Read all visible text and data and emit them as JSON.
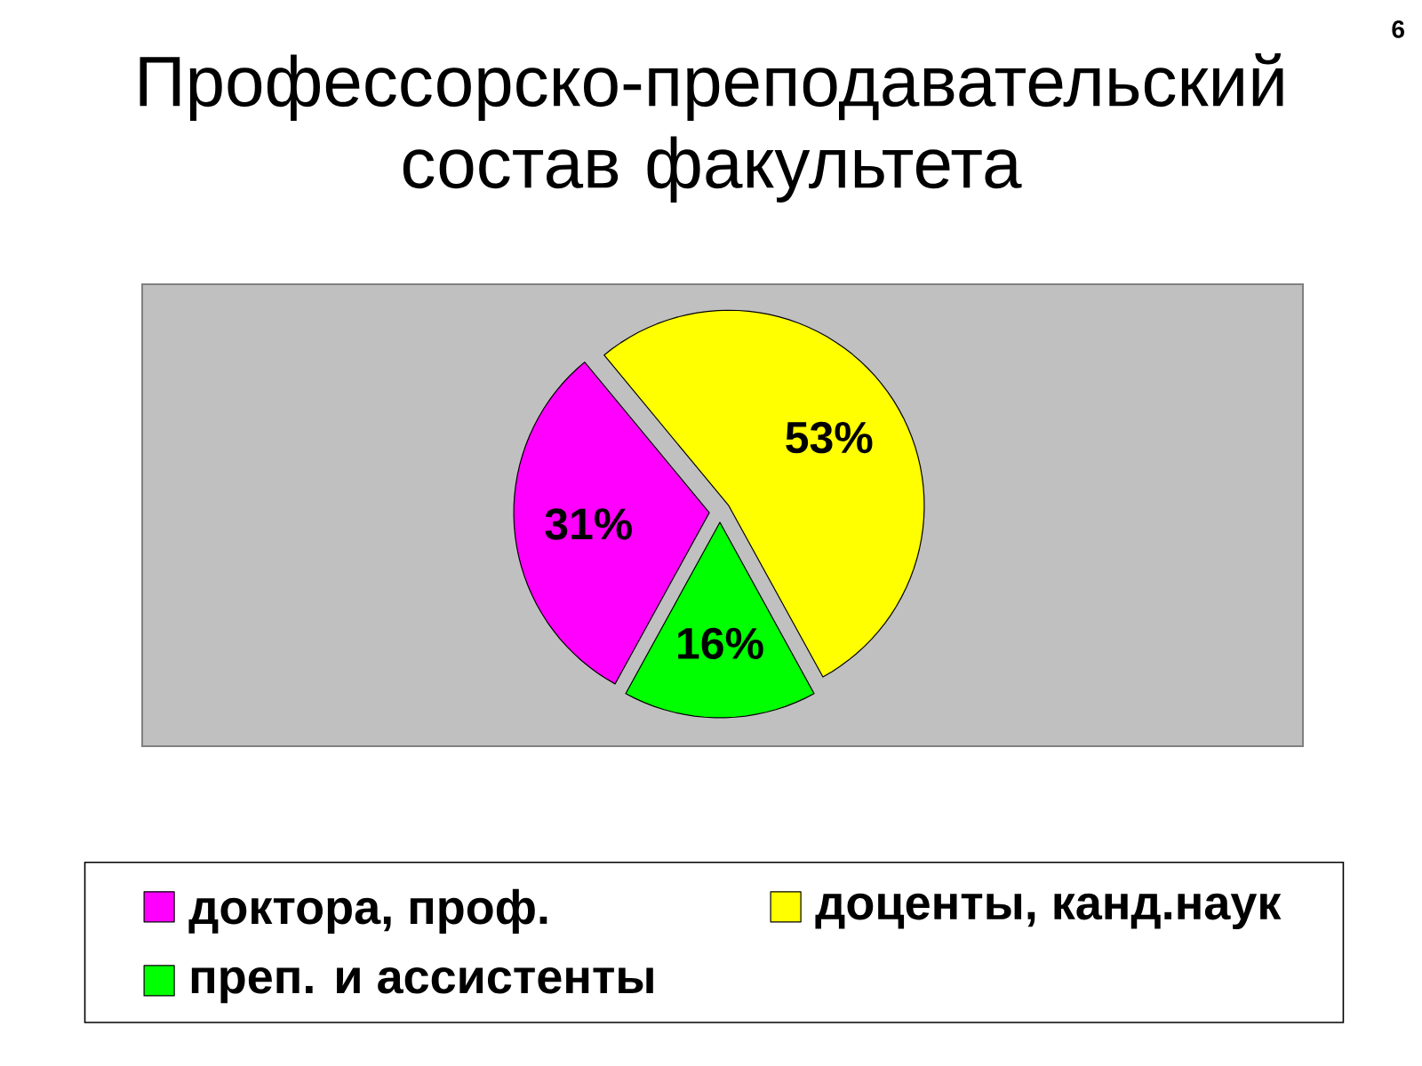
{
  "chart_data": {
    "type": "pie",
    "title": "Профессорско-преподавательский состав факультета",
    "categories": [
      "доктора, проф.",
      "доценты, канд.наук",
      "преп. и ассистенты"
    ],
    "values": [
      31,
      53,
      16
    ],
    "colors": [
      "#ff00ff",
      "#ffff00",
      "#00ff00"
    ],
    "value_labels": [
      "31%",
      "53%",
      "16%"
    ],
    "legend": "bottom",
    "annotations": [
      "6"
    ]
  }
}
